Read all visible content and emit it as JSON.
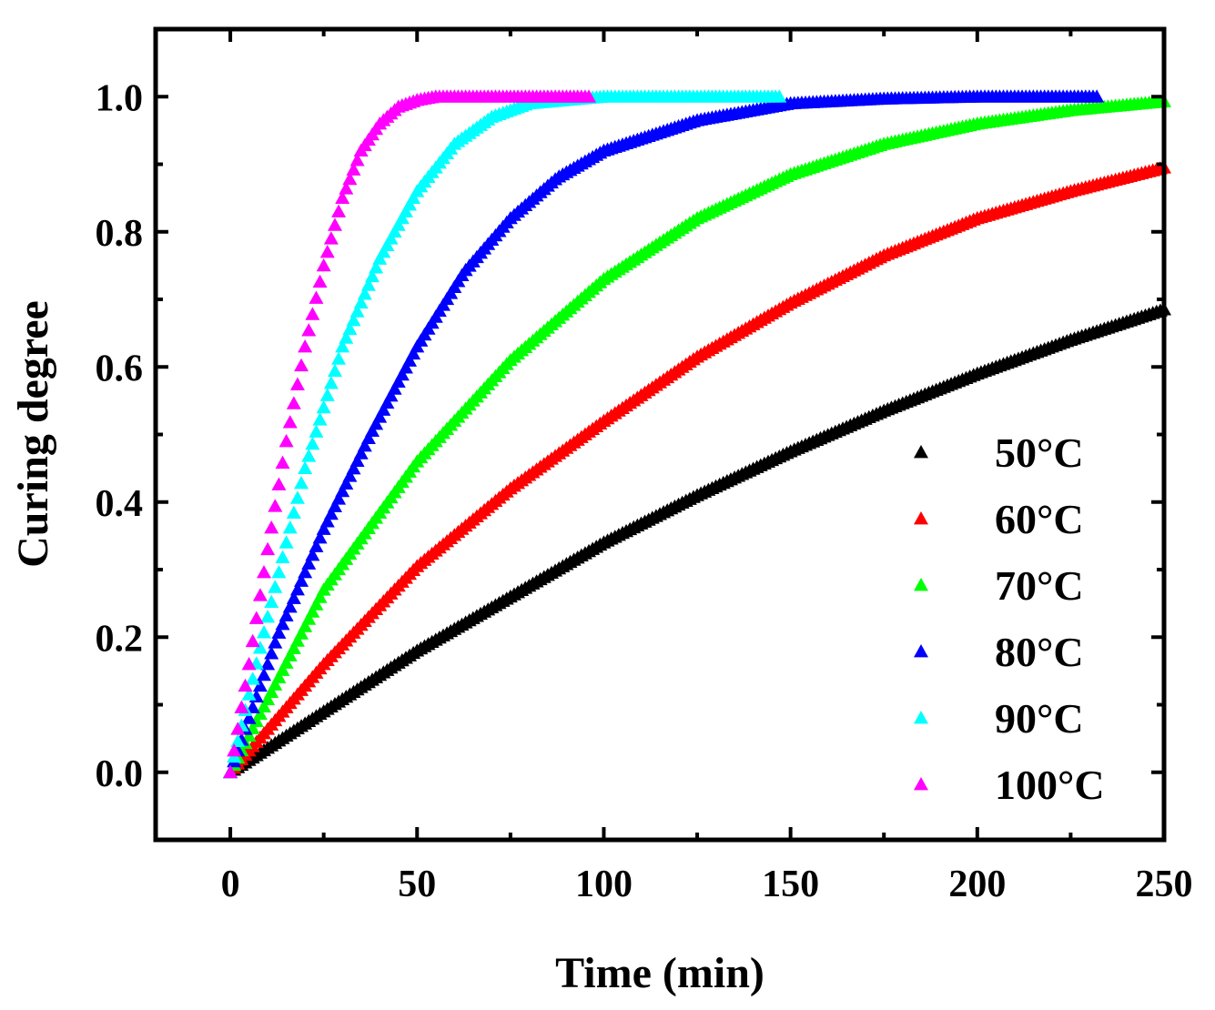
{
  "chart_data": {
    "type": "scatter",
    "xlabel": "Time (min)",
    "ylabel": "Curing degree",
    "xlim": [
      -20,
      250
    ],
    "ylim": [
      -0.1,
      1.1
    ],
    "xticks": [
      0,
      50,
      100,
      150,
      200,
      250
    ],
    "yticks": [
      0.0,
      0.2,
      0.4,
      0.6,
      0.8,
      1.0
    ],
    "xtick_labels": [
      "0",
      "50",
      "100",
      "150",
      "200",
      "250"
    ],
    "ytick_labels": [
      "0.0",
      "0.2",
      "0.4",
      "0.6",
      "0.8",
      "1.0"
    ],
    "grid": false,
    "legend_position": "bottom-right",
    "marker": "triangle",
    "series": [
      {
        "name": "50°C",
        "color": "#000000",
        "x": [
          0,
          25,
          50,
          75,
          100,
          125,
          150,
          175,
          200,
          225,
          250
        ],
        "y": [
          0.0,
          0.09,
          0.18,
          0.26,
          0.34,
          0.41,
          0.475,
          0.535,
          0.59,
          0.64,
          0.685
        ]
      },
      {
        "name": "60°C",
        "color": "#ff0000",
        "x": [
          0,
          25,
          50,
          75,
          100,
          125,
          150,
          175,
          200,
          225,
          250
        ],
        "y": [
          0.0,
          0.16,
          0.305,
          0.42,
          0.52,
          0.615,
          0.695,
          0.765,
          0.82,
          0.86,
          0.895
        ]
      },
      {
        "name": "70°C",
        "color": "#00ff00",
        "x": [
          0,
          25,
          50,
          75,
          100,
          125,
          150,
          175,
          200,
          225,
          250
        ],
        "y": [
          0.0,
          0.27,
          0.46,
          0.61,
          0.73,
          0.82,
          0.885,
          0.93,
          0.96,
          0.98,
          0.993
        ]
      },
      {
        "name": "80°C",
        "color": "#0000ff",
        "x": [
          0,
          12.5,
          25,
          37.5,
          50,
          62.5,
          75,
          87.5,
          100,
          125,
          150,
          175,
          200,
          232
        ],
        "y": [
          0.0,
          0.2,
          0.36,
          0.5,
          0.63,
          0.74,
          0.82,
          0.88,
          0.92,
          0.965,
          0.99,
          0.997,
          1.0,
          1.0
        ]
      },
      {
        "name": "90°C",
        "color": "#00ffff",
        "x": [
          0,
          10,
          20,
          30,
          40,
          50,
          60,
          70,
          80,
          90,
          100,
          125,
          147
        ],
        "y": [
          0.0,
          0.23,
          0.45,
          0.63,
          0.76,
          0.86,
          0.93,
          0.97,
          0.99,
          0.995,
          1.0,
          1.0,
          1.0
        ]
      },
      {
        "name": "100°C",
        "color": "#ff00ff",
        "x": [
          0,
          5,
          10,
          15,
          20,
          25,
          30,
          35,
          40,
          45,
          50,
          55,
          60,
          70,
          80,
          96
        ],
        "y": [
          0.0,
          0.16,
          0.33,
          0.49,
          0.63,
          0.75,
          0.85,
          0.92,
          0.96,
          0.985,
          0.995,
          1.0,
          1.0,
          1.0,
          1.0,
          1.0
        ]
      }
    ]
  }
}
